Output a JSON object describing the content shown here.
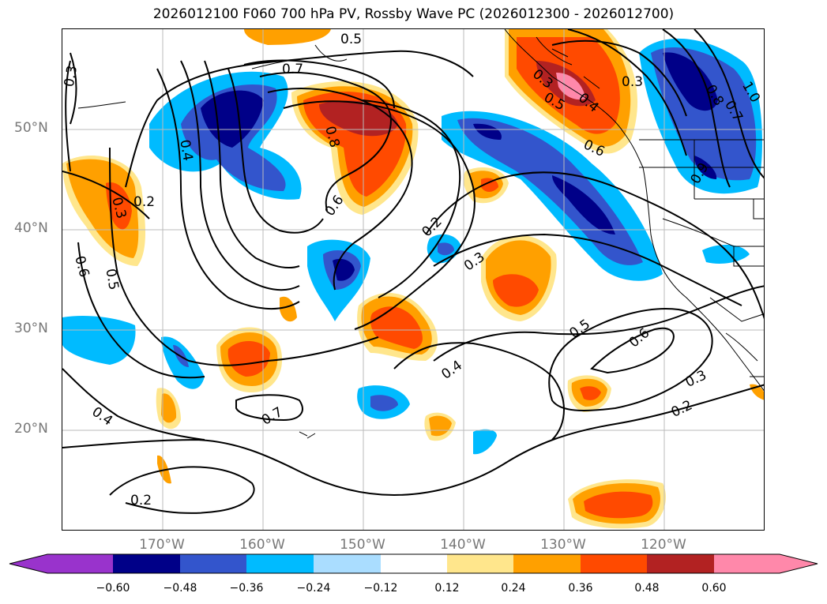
{
  "title": "2026012100 F060 700 hPa PV, Rossby Wave PC (2026012300 - 2026012700)",
  "lat_labels": [
    "50°N",
    "40°N",
    "30°N",
    "20°N"
  ],
  "lon_labels": [
    "170°W",
    "160°W",
    "150°W",
    "140°W",
    "130°W",
    "120°W"
  ],
  "colorbar": {
    "ticks": [
      "−0.60",
      "−0.48",
      "−0.36",
      "−0.24",
      "−0.12",
      "0.12",
      "0.24",
      "0.36",
      "0.48",
      "0.60"
    ],
    "colors": [
      "#9933cc",
      "#000088",
      "#3355cc",
      "#00bbff",
      "#aaddff",
      "#ffffff",
      "#ffe68c",
      "#ffa000",
      "#ff4a00",
      "#b22222",
      "#ff88aa"
    ]
  },
  "contour_labels": {
    "l_03_nw": "0.3",
    "l_05_top": "0.5",
    "l_07_top": "0.7",
    "l_04_w": "0.4",
    "l_08_c": "0.8",
    "l_02_w": "0.2",
    "l_03_w": "0.3",
    "l_06_w": "0.6",
    "l_05_w": "0.5",
    "l_06_c": "0.6",
    "l_02_c": "0.2",
    "l_03_c": "0.3",
    "l_04_sw": "0.4",
    "l_04_s": "0.4",
    "l_07_s": "0.7",
    "l_02_sw": "0.2",
    "l_05_se": "0.5",
    "l_06_se": "0.6",
    "l_03_se": "0.3",
    "l_02_se": "0.2",
    "l_03_ne": "0.3",
    "l_05_ne": "0.5",
    "l_04_ne": "0.4",
    "l_06_ne": "0.6",
    "l_03_ne2": "0.3",
    "l_08_ne": "0.8",
    "l_10_ne": "1.0",
    "l_07_ne": "0.7",
    "l_09_ne": "0.9"
  }
}
